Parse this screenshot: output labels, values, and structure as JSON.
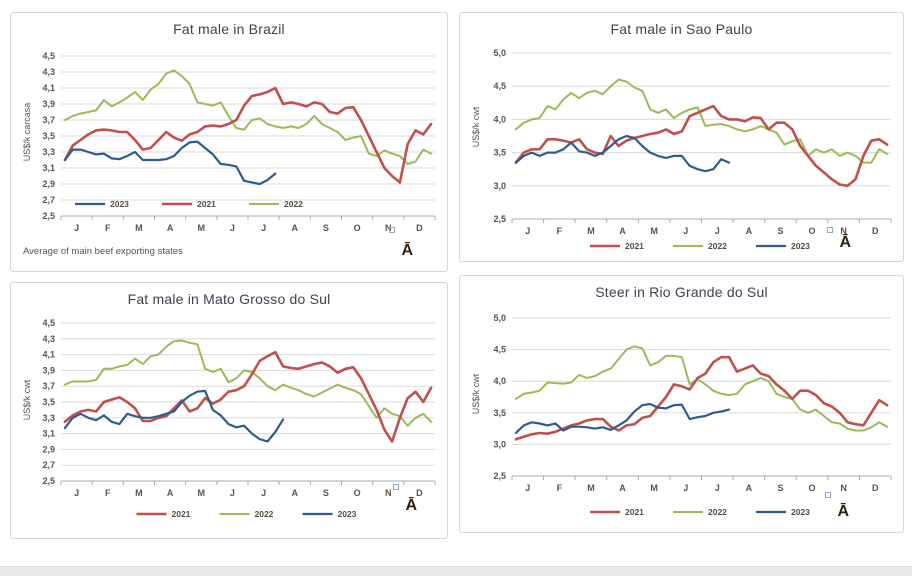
{
  "page": {
    "background": "#ffffff",
    "bottom_bar_color": "#e9e9e9"
  },
  "colors": {
    "series_2021": "#C0504D",
    "series_2022": "#9BBB59",
    "series_2023": "#2F5B8F",
    "grid": "#dadada",
    "axis": "#adadad",
    "axis_text": "#5f5048",
    "legend_text": "#554b42",
    "title_text": "#3f4152"
  },
  "months": [
    "J",
    "F",
    "M",
    "A",
    "M",
    "J",
    "J",
    "A",
    "S",
    "O",
    "N",
    "D"
  ],
  "chart_data": [
    {
      "type": "line",
      "title": "Fat male in Brazil",
      "y_label": "US$/k carcasa",
      "ylim": [
        2.5,
        4.5
      ],
      "y_step": 0.2,
      "x_axis": "weeks of year, labeled by month J-D",
      "grid": "horizontal only",
      "legend_position": "inside bottom-left",
      "legend_order": [
        "2023",
        "2021",
        "2022"
      ],
      "footnote": "Average  of main beef exporting states",
      "watermark": "Ā",
      "series": [
        {
          "name": "2021",
          "color": "#C0504D",
          "width": 2.6,
          "values": [
            3.2,
            3.38,
            3.45,
            3.52,
            3.57,
            3.58,
            3.57,
            3.55,
            3.55,
            3.45,
            3.33,
            3.35,
            3.45,
            3.55,
            3.48,
            3.44,
            3.52,
            3.55,
            3.62,
            3.63,
            3.62,
            3.65,
            3.7,
            3.88,
            4.0,
            4.02,
            4.05,
            4.1,
            3.9,
            3.92,
            3.9,
            3.87,
            3.92,
            3.9,
            3.8,
            3.78,
            3.85,
            3.86,
            3.7,
            3.5,
            3.3,
            3.1,
            3.0,
            2.92,
            3.4,
            3.57,
            3.52,
            3.65
          ]
        },
        {
          "name": "2022",
          "color": "#9BBB59",
          "width": 2.0,
          "values": [
            3.7,
            3.75,
            3.78,
            3.8,
            3.82,
            3.95,
            3.87,
            3.92,
            3.98,
            4.05,
            3.95,
            4.08,
            4.15,
            4.28,
            4.32,
            4.25,
            4.15,
            3.92,
            3.9,
            3.88,
            3.92,
            3.75,
            3.6,
            3.58,
            3.7,
            3.72,
            3.65,
            3.62,
            3.6,
            3.62,
            3.6,
            3.65,
            3.75,
            3.65,
            3.6,
            3.55,
            3.45,
            3.48,
            3.5,
            3.28,
            3.25,
            3.32,
            3.28,
            3.25,
            3.15,
            3.18,
            3.33,
            3.28
          ]
        },
        {
          "name": "2023",
          "color": "#2F5B8F",
          "width": 2.2,
          "values": [
            3.2,
            3.33,
            3.33,
            3.3,
            3.27,
            3.28,
            3.22,
            3.21,
            3.25,
            3.3,
            3.2,
            3.2,
            3.2,
            3.21,
            3.25,
            3.35,
            3.42,
            3.43,
            3.35,
            3.27,
            3.15,
            3.14,
            3.12,
            2.94,
            2.92,
            2.9,
            2.95,
            3.03
          ]
        }
      ]
    },
    {
      "type": "line",
      "title": "Fat male in Sao Paulo",
      "y_label": "US$/k cwt",
      "ylim": [
        2.5,
        5.0
      ],
      "y_step": 0.5,
      "x_axis": "weeks of year, labeled by month J-D",
      "grid": "horizontal only",
      "legend_position": "below axis",
      "legend_order": [
        "2021",
        "2022",
        "2023"
      ],
      "watermark": "Ā",
      "series": [
        {
          "name": "2021",
          "color": "#C0504D",
          "width": 2.6,
          "values": [
            3.35,
            3.5,
            3.55,
            3.55,
            3.7,
            3.7,
            3.68,
            3.65,
            3.7,
            3.55,
            3.5,
            3.48,
            3.75,
            3.6,
            3.68,
            3.72,
            3.75,
            3.78,
            3.8,
            3.85,
            3.78,
            3.82,
            4.05,
            4.1,
            4.15,
            4.2,
            4.05,
            4.0,
            4.0,
            3.97,
            4.03,
            4.02,
            3.85,
            3.95,
            3.95,
            3.85,
            3.6,
            3.45,
            3.3,
            3.2,
            3.1,
            3.02,
            3.0,
            3.1,
            3.45,
            3.68,
            3.7,
            3.62
          ]
        },
        {
          "name": "2022",
          "color": "#9BBB59",
          "width": 2.0,
          "values": [
            3.85,
            3.95,
            4.0,
            4.02,
            4.2,
            4.15,
            4.3,
            4.4,
            4.32,
            4.4,
            4.43,
            4.38,
            4.5,
            4.6,
            4.57,
            4.48,
            4.43,
            4.15,
            4.1,
            4.15,
            4.02,
            4.1,
            4.15,
            4.18,
            3.9,
            3.92,
            3.93,
            3.9,
            3.85,
            3.82,
            3.85,
            3.9,
            3.85,
            3.8,
            3.62,
            3.67,
            3.7,
            3.45,
            3.55,
            3.5,
            3.55,
            3.45,
            3.5,
            3.45,
            3.35,
            3.35,
            3.55,
            3.48
          ]
        },
        {
          "name": "2023",
          "color": "#2F5B8F",
          "width": 2.2,
          "values": [
            3.35,
            3.45,
            3.5,
            3.45,
            3.5,
            3.5,
            3.55,
            3.65,
            3.52,
            3.5,
            3.45,
            3.5,
            3.6,
            3.7,
            3.75,
            3.72,
            3.6,
            3.5,
            3.45,
            3.42,
            3.45,
            3.45,
            3.3,
            3.25,
            3.22,
            3.25,
            3.4,
            3.35
          ]
        }
      ]
    },
    {
      "type": "line",
      "title": "Fat male in Mato Grosso do Sul",
      "y_label": "US$/k cwt",
      "ylim": [
        2.5,
        4.5
      ],
      "y_step": 0.2,
      "x_axis": "weeks of year, labeled by month J-D",
      "grid": "horizontal only",
      "legend_position": "below axis",
      "legend_order": [
        "2021",
        "2022",
        "2023"
      ],
      "watermark": "Ā",
      "series": [
        {
          "name": "2021",
          "color": "#C0504D",
          "width": 2.6,
          "values": [
            3.25,
            3.33,
            3.38,
            3.4,
            3.38,
            3.5,
            3.53,
            3.56,
            3.5,
            3.42,
            3.26,
            3.26,
            3.3,
            3.32,
            3.42,
            3.52,
            3.38,
            3.42,
            3.55,
            3.48,
            3.53,
            3.63,
            3.65,
            3.7,
            3.85,
            4.02,
            4.08,
            4.13,
            3.95,
            3.93,
            3.92,
            3.95,
            3.98,
            4.0,
            3.95,
            3.87,
            3.92,
            3.94,
            3.8,
            3.6,
            3.4,
            3.15,
            3.0,
            3.3,
            3.55,
            3.63,
            3.5,
            3.68
          ]
        },
        {
          "name": "2022",
          "color": "#9BBB59",
          "width": 2.0,
          "values": [
            3.72,
            3.76,
            3.76,
            3.76,
            3.78,
            3.92,
            3.92,
            3.95,
            3.97,
            4.05,
            3.98,
            4.08,
            4.1,
            4.2,
            4.27,
            4.28,
            4.25,
            4.23,
            3.92,
            3.88,
            3.92,
            3.75,
            3.8,
            3.9,
            3.88,
            3.8,
            3.7,
            3.65,
            3.72,
            3.68,
            3.65,
            3.6,
            3.57,
            3.62,
            3.67,
            3.72,
            3.68,
            3.65,
            3.6,
            3.45,
            3.3,
            3.42,
            3.35,
            3.32,
            3.2,
            3.3,
            3.35,
            3.25
          ]
        },
        {
          "name": "2023",
          "color": "#2F5B8F",
          "width": 2.2,
          "values": [
            3.17,
            3.3,
            3.35,
            3.3,
            3.27,
            3.33,
            3.25,
            3.22,
            3.35,
            3.32,
            3.3,
            3.3,
            3.32,
            3.35,
            3.38,
            3.5,
            3.58,
            3.63,
            3.64,
            3.4,
            3.33,
            3.22,
            3.18,
            3.2,
            3.1,
            3.03,
            3.0,
            3.12,
            3.28
          ]
        }
      ]
    },
    {
      "type": "line",
      "title": "Steer  in Rio Grande do Sul",
      "y_label": "US$/k cwt",
      "ylim": [
        2.5,
        5.0
      ],
      "y_step": 0.5,
      "x_axis": "weeks of year, labeled by month J-D",
      "grid": "horizontal only",
      "legend_position": "below axis",
      "legend_order": [
        "2021",
        "2022",
        "2023"
      ],
      "watermark": "Ā",
      "series": [
        {
          "name": "2021",
          "color": "#C0504D",
          "width": 2.6,
          "values": [
            3.08,
            3.12,
            3.16,
            3.18,
            3.17,
            3.2,
            3.25,
            3.3,
            3.33,
            3.38,
            3.4,
            3.4,
            3.28,
            3.22,
            3.3,
            3.32,
            3.42,
            3.45,
            3.6,
            3.75,
            3.95,
            3.92,
            3.87,
            4.05,
            4.12,
            4.3,
            4.38,
            4.38,
            4.15,
            4.2,
            4.25,
            4.12,
            4.08,
            3.95,
            3.85,
            3.72,
            3.85,
            3.85,
            3.78,
            3.65,
            3.6,
            3.5,
            3.35,
            3.32,
            3.3,
            3.5,
            3.7,
            3.62
          ]
        },
        {
          "name": "2022",
          "color": "#9BBB59",
          "width": 2.0,
          "values": [
            3.72,
            3.8,
            3.82,
            3.85,
            3.98,
            3.97,
            3.96,
            3.98,
            4.1,
            4.05,
            4.08,
            4.15,
            4.2,
            4.35,
            4.5,
            4.55,
            4.52,
            4.25,
            4.3,
            4.4,
            4.4,
            4.38,
            3.95,
            4.03,
            3.95,
            3.85,
            3.8,
            3.78,
            3.8,
            3.95,
            4.0,
            4.05,
            4.0,
            3.8,
            3.75,
            3.72,
            3.55,
            3.5,
            3.55,
            3.45,
            3.35,
            3.33,
            3.25,
            3.22,
            3.22,
            3.27,
            3.35,
            3.28
          ]
        },
        {
          "name": "2023",
          "color": "#2F5B8F",
          "width": 2.2,
          "values": [
            3.18,
            3.3,
            3.35,
            3.33,
            3.3,
            3.33,
            3.22,
            3.28,
            3.28,
            3.27,
            3.25,
            3.27,
            3.23,
            3.3,
            3.38,
            3.52,
            3.62,
            3.64,
            3.58,
            3.57,
            3.62,
            3.63,
            3.4,
            3.43,
            3.45,
            3.5,
            3.52,
            3.55
          ]
        }
      ]
    }
  ]
}
